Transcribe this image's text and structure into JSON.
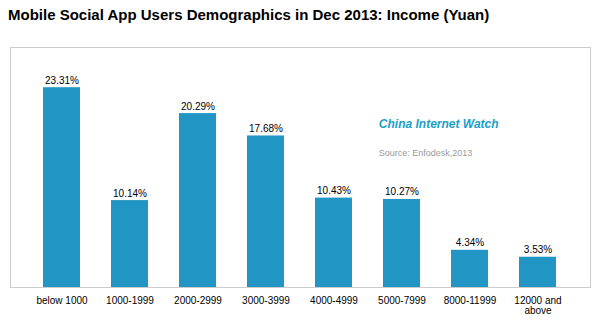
{
  "chart_data": {
    "type": "bar",
    "title": "Mobile Social App Users Demographics in Dec 2013: Income (Yuan)",
    "categories": [
      "below 1000",
      "1000-1999",
      "2000-2999",
      "3000-3999",
      "4000-4999",
      "5000-7999",
      "8000-11999",
      "12000 and\nabove"
    ],
    "values": [
      23.31,
      10.14,
      20.29,
      17.68,
      10.43,
      10.27,
      4.34,
      3.53
    ],
    "value_labels": [
      "23.31%",
      "10.14%",
      "20.29%",
      "17.68%",
      "10.43%",
      "10.27%",
      "4.34%",
      "3.53%"
    ],
    "data_labels": true,
    "color": "#2196C4",
    "ylim": [
      0,
      28
    ],
    "tick_labels": "x",
    "grid": false,
    "annotations": [
      {
        "text": "China Internet Watch",
        "color": "#1a9fca"
      },
      {
        "text": "Source: Enfodesk,2013",
        "color": "#999999"
      }
    ]
  }
}
